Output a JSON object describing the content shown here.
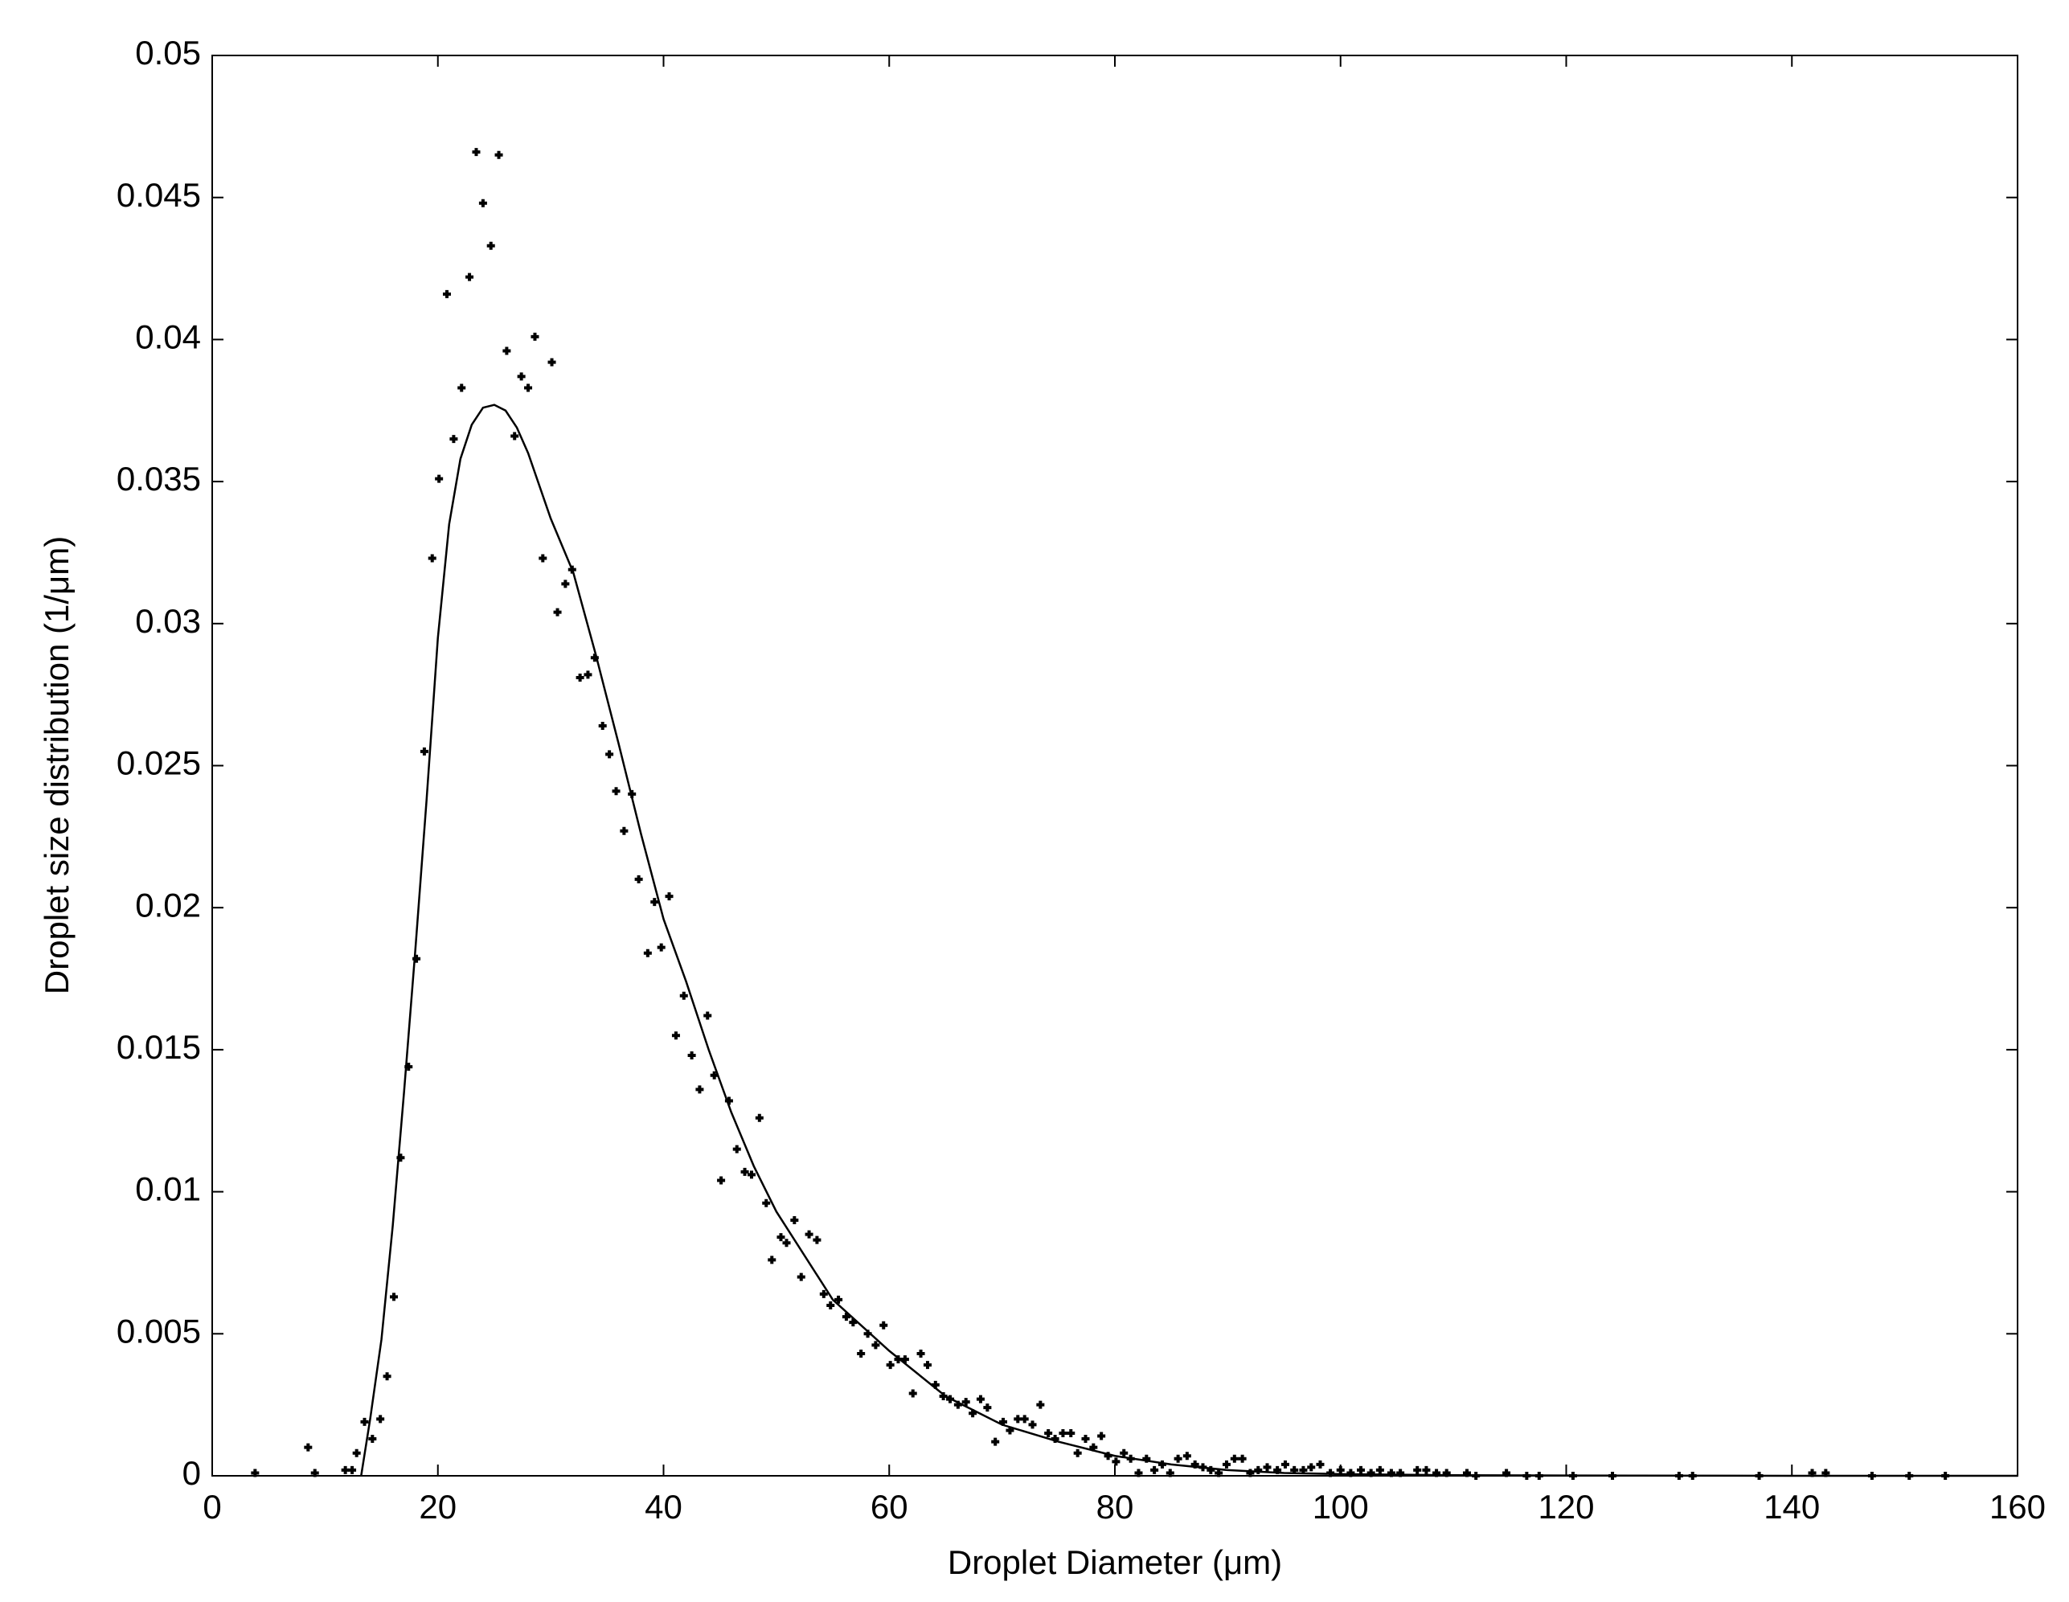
{
  "chart_data": {
    "type": "scatter",
    "x_label": "Droplet Diameter (μm)",
    "y_label": "Droplet size distribution (1/μm)",
    "xlim": [
      0,
      160
    ],
    "ylim": [
      0,
      0.05
    ],
    "xticks": [
      0,
      20,
      40,
      60,
      80,
      100,
      120,
      140,
      160
    ],
    "yticks": [
      0,
      0.005,
      0.01,
      0.015,
      0.02,
      0.025,
      0.03,
      0.035,
      0.04,
      0.045,
      0.05
    ],
    "grid": false,
    "box": true,
    "series": [
      {
        "mode": "markers",
        "color": "#000000",
        "x": [
          3.8,
          8.5,
          9.1,
          11.8,
          12.4,
          12.8,
          13.5,
          14.2,
          14.9,
          15.5,
          16.1,
          16.7,
          17.4,
          18.1,
          18.8,
          19.5,
          20.1,
          20.8,
          21.4,
          22.1,
          22.8,
          23.4,
          24.0,
          24.7,
          25.4,
          26.1,
          26.8,
          27.4,
          28.0,
          28.6,
          29.3,
          30.1,
          30.6,
          31.3,
          31.9,
          32.6,
          33.3,
          33.9,
          34.6,
          35.2,
          35.8,
          36.5,
          37.2,
          37.8,
          38.6,
          39.2,
          39.8,
          40.5,
          41.1,
          41.8,
          42.5,
          43.2,
          43.9,
          44.5,
          45.1,
          45.8,
          46.5,
          47.2,
          47.8,
          48.5,
          49.1,
          49.6,
          50.4,
          50.9,
          51.6,
          52.2,
          52.9,
          53.6,
          54.2,
          54.8,
          55.5,
          56.2,
          56.8,
          57.5,
          58.1,
          58.8,
          59.5,
          60.1,
          60.8,
          61.4,
          62.1,
          62.8,
          63.4,
          64.1,
          64.8,
          65.4,
          66.1,
          66.8,
          67.4,
          68.1,
          68.7,
          69.4,
          70.1,
          70.7,
          71.4,
          72.0,
          72.7,
          73.4,
          74.1,
          74.7,
          75.4,
          76.1,
          76.7,
          77.4,
          78.1,
          78.8,
          79.4,
          80.1,
          80.8,
          81.4,
          82.1,
          82.8,
          83.5,
          84.2,
          84.9,
          85.6,
          86.4,
          87.1,
          87.8,
          88.5,
          89.2,
          89.9,
          90.6,
          91.3,
          92.0,
          92.7,
          93.5,
          94.4,
          95.1,
          95.9,
          96.7,
          97.4,
          98.2,
          99.1,
          100.0,
          100.9,
          101.8,
          102.7,
          103.5,
          104.5,
          105.3,
          106.8,
          107.6,
          108.5,
          109.4,
          111.2,
          112.0,
          114.7,
          116.5,
          117.6,
          120.6,
          124.1,
          130.0,
          131.2,
          137.1,
          141.8,
          143.0,
          147.1,
          150.4,
          153.6
        ],
        "values": [
          0.0001,
          0.001,
          0.0001,
          0.0002,
          0.0002,
          0.0008,
          0.0019,
          0.0013,
          0.002,
          0.0035,
          0.0063,
          0.0112,
          0.0144,
          0.0182,
          0.0255,
          0.0323,
          0.0351,
          0.0416,
          0.0365,
          0.0383,
          0.0422,
          0.0466,
          0.0448,
          0.0433,
          0.0465,
          0.0396,
          0.0366,
          0.0387,
          0.0383,
          0.0401,
          0.0323,
          0.0392,
          0.0304,
          0.0314,
          0.0319,
          0.0281,
          0.0282,
          0.0288,
          0.0264,
          0.0254,
          0.0241,
          0.0227,
          0.024,
          0.021,
          0.0184,
          0.0202,
          0.0186,
          0.0204,
          0.0155,
          0.0169,
          0.0148,
          0.0136,
          0.0162,
          0.0141,
          0.0104,
          0.0132,
          0.0115,
          0.0107,
          0.0106,
          0.0126,
          0.0096,
          0.0076,
          0.0084,
          0.0082,
          0.009,
          0.007,
          0.0085,
          0.0083,
          0.0064,
          0.006,
          0.0062,
          0.0056,
          0.0054,
          0.0043,
          0.005,
          0.0046,
          0.0053,
          0.0039,
          0.0041,
          0.0041,
          0.0029,
          0.0043,
          0.0039,
          0.0032,
          0.0028,
          0.0027,
          0.0025,
          0.0026,
          0.0022,
          0.0027,
          0.0024,
          0.0012,
          0.0019,
          0.0016,
          0.002,
          0.002,
          0.0018,
          0.0025,
          0.0015,
          0.0013,
          0.0015,
          0.0015,
          0.0008,
          0.0013,
          0.001,
          0.0014,
          0.0007,
          0.0005,
          0.0008,
          0.0006,
          0.0001,
          0.0006,
          0.0002,
          0.0004,
          0.0001,
          0.0006,
          0.0007,
          0.0004,
          0.0003,
          0.0002,
          0.0001,
          0.0004,
          0.0006,
          0.0006,
          0.0001,
          0.0002,
          0.0003,
          0.0002,
          0.0004,
          0.0002,
          0.0002,
          0.0003,
          0.0004,
          0.0001,
          0.0002,
          0.0001,
          0.0002,
          0.0001,
          0.0002,
          0.0001,
          0.0001,
          0.0002,
          0.0002,
          0.0001,
          0.0001,
          0.0001,
          0,
          0.0001,
          0,
          0,
          0,
          0,
          0,
          0,
          0,
          0.0001,
          0.0001,
          0,
          0,
          0
        ]
      },
      {
        "mode": "line",
        "color": "#000000",
        "x": [
          13.2,
          14,
          15,
          16,
          17,
          18,
          19,
          20,
          21,
          22,
          23,
          24,
          25,
          26,
          27,
          28,
          30,
          32,
          34,
          36,
          38,
          40,
          42,
          44,
          46,
          48,
          50,
          55,
          60,
          65,
          70,
          75,
          80,
          85,
          90,
          95,
          100,
          110,
          120,
          140,
          160
        ],
        "values": [
          0,
          0.002,
          0.0048,
          0.0088,
          0.0135,
          0.0185,
          0.0238,
          0.0295,
          0.0335,
          0.0358,
          0.037,
          0.0376,
          0.0377,
          0.0375,
          0.0369,
          0.036,
          0.0337,
          0.0318,
          0.0289,
          0.0258,
          0.0226,
          0.0196,
          0.0174,
          0.015,
          0.0128,
          0.0109,
          0.0093,
          0.0062,
          0.0044,
          0.0028,
          0.0018,
          0.0012,
          0.0007,
          0.0004,
          0.0002,
          0.0001,
          6e-05,
          2e-05,
          1e-05,
          0,
          0
        ]
      }
    ]
  }
}
